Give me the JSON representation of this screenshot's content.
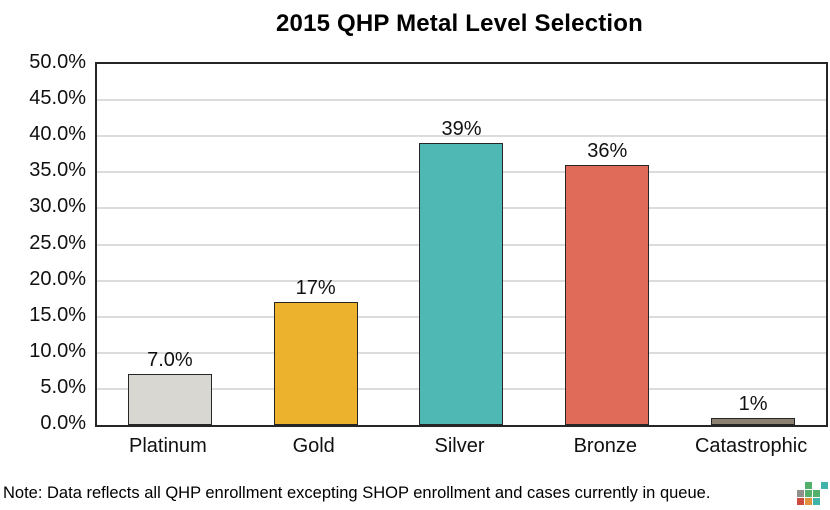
{
  "title": "2015 QHP Metal Level Selection",
  "note": "Note: Data reflects all QHP enrollment excepting SHOP enrollment and cases currently in queue.",
  "chart_data": {
    "type": "bar",
    "title": "2015 QHP Metal Level Selection",
    "categories": [
      "Platinum",
      "Gold",
      "Silver",
      "Bronze",
      "Catastrophic"
    ],
    "values": [
      7.0,
      17,
      39,
      36,
      1
    ],
    "bar_labels": [
      "7.0%",
      "17%",
      "39%",
      "36%",
      "1%"
    ],
    "bar_colors": [
      "#d8d7d2",
      "#ecb22e",
      "#4fb8b4",
      "#e16b59",
      "#8b8172"
    ],
    "bar_border_color": "#262626",
    "xlabel": "",
    "ylabel": "",
    "ylim": [
      0,
      50
    ],
    "ytick_step": 5,
    "yticks": [
      "50.0%",
      "45.0%",
      "40.0%",
      "35.0%",
      "30.0%",
      "25.0%",
      "20.0%",
      "15.0%",
      "10.0%",
      "5.0%",
      "0.0%"
    ],
    "grid": "horizontal-on",
    "gridline_color": "#dcdcdc",
    "legend": "none",
    "frame_color": "#262626"
  },
  "logo": {
    "name": "pixel-blocks-logo",
    "grid": [
      [
        "",
        "#52b06a",
        "",
        "#3fb3a9"
      ],
      [
        "#8e9089",
        "#52b06a",
        "#52b06a",
        ""
      ],
      [
        "#cf4a3e",
        "#e0923f",
        "#3fb3a9",
        ""
      ]
    ]
  }
}
